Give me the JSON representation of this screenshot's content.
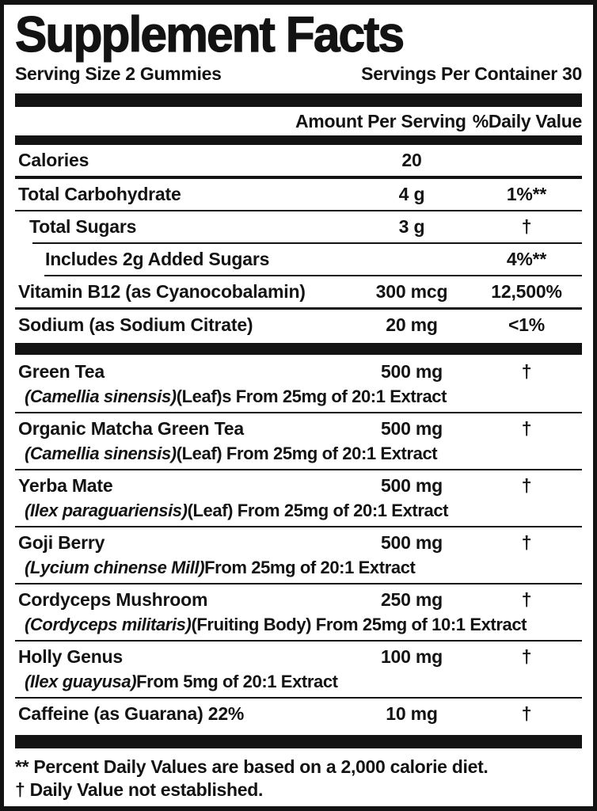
{
  "title": "Supplement Facts",
  "serving": {
    "size": "Serving Size 2 Gummies",
    "per_container": "Servings Per Container 30"
  },
  "columns": {
    "amount": "Amount Per Serving",
    "daily_value": "%Daily Value"
  },
  "rows": [
    {
      "name": "Calories",
      "amount": "20",
      "dv": "",
      "indent": 0,
      "sep": "thick"
    },
    {
      "name": "Total Carbohydrate",
      "amount": "4 g",
      "dv": "1%**",
      "indent": 0,
      "sep": "thin"
    },
    {
      "name": "Total Sugars",
      "amount": "3 g",
      "dv": "†",
      "indent": 1,
      "sep": "thin-i1"
    },
    {
      "name": "Includes 2g Added Sugars",
      "amount": "",
      "dv": "4%**",
      "indent": 2,
      "sep": "thin-i2"
    },
    {
      "name": "Vitamin B12 (as Cyanocobalamin)",
      "amount": "300 mcg",
      "dv": "12,500%",
      "indent": 0,
      "sep": "med"
    },
    {
      "name": "Sodium (as Sodium Citrate)",
      "amount": "20 mg",
      "dv": "<1%",
      "indent": 0,
      "sep": "bar"
    },
    {
      "name": "Green Tea",
      "amount": "500 mg",
      "dv": "†",
      "indent": 0,
      "sub": [
        {
          "text": "(Camellia sinensis)",
          "italic": true
        },
        {
          "text": " (Leaf)s From 25mg of 20:1 Extract",
          "italic": false
        }
      ],
      "sep": "thin"
    },
    {
      "name": "Organic Matcha Green Tea",
      "amount": "500 mg",
      "dv": "†",
      "indent": 0,
      "sub": [
        {
          "text": "(Camellia sinensis)",
          "italic": true
        },
        {
          "text": " (Leaf) From 25mg of 20:1 Extract",
          "italic": false
        }
      ],
      "sep": "thin"
    },
    {
      "name": "Yerba Mate",
      "amount": "500 mg",
      "dv": "†",
      "indent": 0,
      "sub": [
        {
          "text": "(Ilex paraguariensis)",
          "italic": true
        },
        {
          "text": " (Leaf) From 25mg of 20:1 Extract",
          "italic": false
        }
      ],
      "sep": "thin"
    },
    {
      "name": "Goji Berry",
      "amount": "500 mg",
      "dv": "†",
      "indent": 0,
      "sub": [
        {
          "text": "(Lycium chinense Mill)",
          "italic": true
        },
        {
          "text": " From 25mg of 20:1 Extract",
          "italic": false
        }
      ],
      "sep": "thin"
    },
    {
      "name": "Cordyceps Mushroom",
      "amount": "250 mg",
      "dv": "†",
      "indent": 0,
      "sub": [
        {
          "text": "(Cordyceps militaris)",
          "italic": true
        },
        {
          "text": " (Fruiting Body) From 25mg of 10:1 Extract",
          "italic": false
        }
      ],
      "sep": "thin"
    },
    {
      "name": "Holly Genus",
      "amount": "100 mg",
      "dv": "†",
      "indent": 0,
      "sub": [
        {
          "text": "(Ilex guayusa)",
          "italic": true
        },
        {
          "text": " From 5mg of 20:1 Extract",
          "italic": false
        }
      ],
      "sep": "thin"
    },
    {
      "name": "Caffeine (as Guarana) 22%",
      "amount": "10 mg",
      "dv": "†",
      "indent": 0,
      "sep": "bar-tall"
    }
  ],
  "footnotes": [
    "** Percent Daily Values are based on a 2,000 calorie diet.",
    "† Daily Value not established."
  ],
  "colors": {
    "ink": "#131313",
    "background": "#ffffff"
  }
}
